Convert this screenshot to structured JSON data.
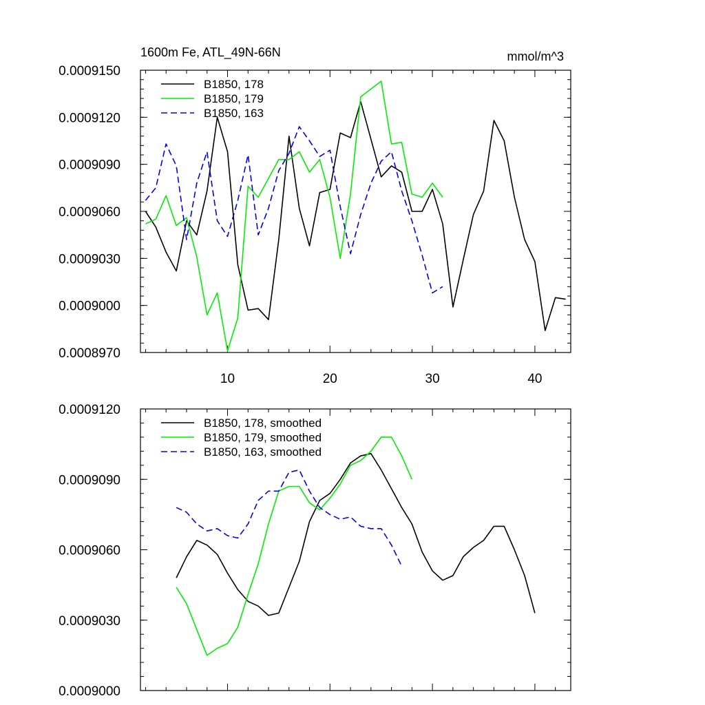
{
  "chart_data": [
    {
      "type": "line",
      "title": "1600m Fe, ATL_49N-66N",
      "units": "mmol/m^3",
      "xlim": [
        1.5,
        43.5
      ],
      "ylim": [
        0.000897,
        0.000915
      ],
      "ytick_labels": [
        "0.0009150",
        "0.0009120",
        "0.0009090",
        "0.0009060",
        "0.0009030",
        "0.0009000",
        "0.0008970"
      ],
      "ytick_values": [
        0.000915,
        0.000912,
        0.000909,
        0.000906,
        0.000903,
        0.0009,
        0.000897
      ],
      "xtick_labels": [
        "10",
        "20",
        "30",
        "40"
      ],
      "xtick_values": [
        10,
        20,
        30,
        40
      ],
      "legend_position": "top-left",
      "series": [
        {
          "name": "B1850, 178",
          "color": "#000000",
          "dash": "solid",
          "x_start": 2,
          "values": [
            0.000906,
            0.000905,
            0.0009034,
            0.0009022,
            0.0009054,
            0.0009045,
            0.0009073,
            0.000912,
            0.0009098,
            0.0009026,
            0.0008997,
            0.0008998,
            0.0008991,
            0.0009042,
            0.0009108,
            0.0009062,
            0.0009038,
            0.0009072,
            0.0009074,
            0.000911,
            0.0009107,
            0.000913,
            0.0009106,
            0.0009082,
            0.0009089,
            0.0009085,
            0.000906,
            0.000906,
            0.0009074,
            0.0009052,
            0.0008999,
            0.0009029,
            0.0009058,
            0.0009073,
            0.0009118,
            0.0009105,
            0.0009069,
            0.0009042,
            0.0009028,
            0.0008984,
            0.0009005,
            0.0009004
          ]
        },
        {
          "name": "B1850, 179",
          "color": "#00ee00",
          "dash": "solid",
          "x_start": 2,
          "values": [
            0.0009052,
            0.0009055,
            0.000907,
            0.0009051,
            0.0009056,
            0.0009031,
            0.0008994,
            0.0009008,
            0.0008971,
            0.0008992,
            0.0009076,
            0.0009069,
            0.0009081,
            0.0009093,
            0.0009093,
            0.0009098,
            0.0009085,
            0.0009093,
            0.0009069,
            0.000903,
            0.0009071,
            0.0009133,
            0.0009138,
            0.0009143,
            0.0009103,
            0.0009104,
            0.0009071,
            0.0009069,
            0.0009078,
            0.0009069
          ]
        },
        {
          "name": "B1850, 163",
          "color": "#0000ee",
          "dash": "dashed",
          "x_start": 2,
          "values": [
            0.0009067,
            0.0009075,
            0.0009103,
            0.0009089,
            0.0009042,
            0.0009078,
            0.0009098,
            0.0009054,
            0.0009044,
            0.0009067,
            0.0009096,
            0.0009045,
            0.0009062,
            0.0009086,
            0.0009097,
            0.0009114,
            0.0009105,
            0.0009095,
            0.0009099,
            0.0009063,
            0.0009033,
            0.0009058,
            0.0009078,
            0.0009092,
            0.0009098,
            0.0009073,
            0.0009054,
            0.0009032,
            0.0009008,
            0.0009012
          ]
        }
      ]
    },
    {
      "type": "line",
      "title": "",
      "xlim": [
        1.5,
        43.5
      ],
      "ylim": [
        0.0009,
        0.000912
      ],
      "ytick_labels": [
        "0.0009120",
        "0.0009090",
        "0.0009060",
        "0.0009030",
        "0.0009000"
      ],
      "ytick_values": [
        0.000912,
        0.000909,
        0.000906,
        0.000903,
        0.0009
      ],
      "xtick_labels": [],
      "xtick_values": [
        10,
        20,
        30,
        40
      ],
      "legend_position": "top-left",
      "series": [
        {
          "name": "B1850, 178, smoothed",
          "color": "#000000",
          "dash": "solid",
          "x_start": 5,
          "values": [
            0.0009048,
            0.0009057,
            0.0009064,
            0.0009062,
            0.0009058,
            0.000905,
            0.0009043,
            0.0009038,
            0.0009036,
            0.0009032,
            0.0009033,
            0.0009044,
            0.0009055,
            0.0009072,
            0.0009081,
            0.0009084,
            0.000909,
            0.0009097,
            0.00091,
            0.0009101,
            0.0009094,
            0.0009086,
            0.0009078,
            0.0009071,
            0.0009059,
            0.0009051,
            0.0009047,
            0.0009049,
            0.0009057,
            0.0009061,
            0.0009064,
            0.000907,
            0.000907,
            0.000906,
            0.0009049,
            0.0009033
          ]
        },
        {
          "name": "B1850, 179, smoothed",
          "color": "#00ee00",
          "dash": "solid",
          "x_start": 5,
          "values": [
            0.0009044,
            0.0009037,
            0.0009026,
            0.0009015,
            0.0009018,
            0.000902,
            0.0009027,
            0.0009041,
            0.0009054,
            0.0009071,
            0.0009085,
            0.0009087,
            0.0009087,
            0.000908,
            0.0009077,
            0.0009082,
            0.0009088,
            0.0009096,
            0.0009098,
            0.0009102,
            0.0009108,
            0.0009108,
            0.00091,
            0.000909
          ]
        },
        {
          "name": "B1850, 163, smoothed",
          "color": "#0000ee",
          "dash": "dashed",
          "x_start": 5,
          "values": [
            0.0009078,
            0.0009076,
            0.0009071,
            0.0009068,
            0.0009069,
            0.0009066,
            0.0009065,
            0.0009071,
            0.0009081,
            0.0009085,
            0.0009085,
            0.0009093,
            0.0009094,
            0.0009085,
            0.0009078,
            0.0009075,
            0.0009073,
            0.0009074,
            0.000907,
            0.0009069,
            0.0009069,
            0.0009062,
            0.0009053
          ]
        }
      ]
    }
  ]
}
